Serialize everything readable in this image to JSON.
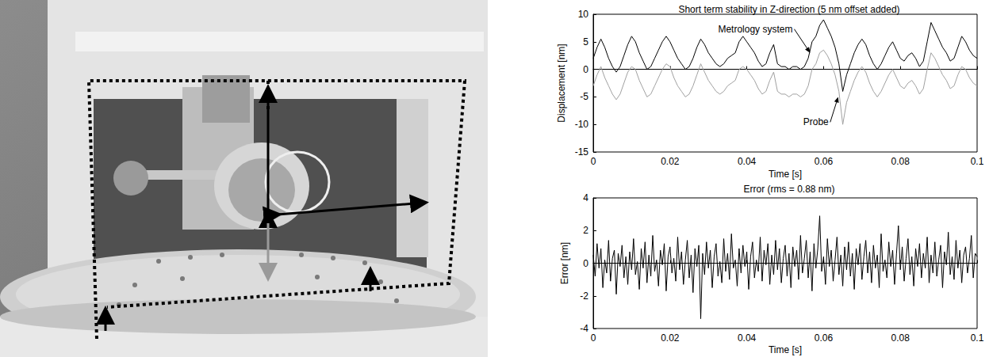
{
  "chart_data": [
    {
      "type": "line",
      "title": "Short term stability in Z-direction (5 nm offset added)",
      "xlabel": "Time [s]",
      "ylabel": "Displacement [nm]",
      "x": [
        0,
        0.001,
        0.002,
        0.003,
        0.004,
        0.005,
        0.006,
        0.007,
        0.008,
        0.009,
        0.01,
        0.011,
        0.012,
        0.013,
        0.014,
        0.015,
        0.016,
        0.017,
        0.018,
        0.019,
        0.02,
        0.021,
        0.022,
        0.023,
        0.024,
        0.025,
        0.026,
        0.027,
        0.028,
        0.029,
        0.03,
        0.031,
        0.032,
        0.033,
        0.034,
        0.035,
        0.036,
        0.037,
        0.038,
        0.039,
        0.04,
        0.041,
        0.042,
        0.043,
        0.044,
        0.045,
        0.046,
        0.047,
        0.048,
        0.049,
        0.05,
        0.051,
        0.052,
        0.053,
        0.054,
        0.055,
        0.056,
        0.057,
        0.058,
        0.059,
        0.06,
        0.061,
        0.062,
        0.063,
        0.064,
        0.065,
        0.066,
        0.067,
        0.068,
        0.069,
        0.07,
        0.071,
        0.072,
        0.073,
        0.074,
        0.075,
        0.076,
        0.077,
        0.078,
        0.079,
        0.08,
        0.081,
        0.082,
        0.083,
        0.084,
        0.085,
        0.086,
        0.087,
        0.088,
        0.089,
        0.09,
        0.091,
        0.092,
        0.093,
        0.094,
        0.095,
        0.096,
        0.097,
        0.098,
        0.099,
        0.1
      ],
      "series": [
        {
          "color": "#000000",
          "values": [
            2,
            4,
            5.5,
            4,
            2,
            0.5,
            -0.5,
            0.5,
            2.5,
            4.5,
            6,
            5,
            3,
            1.5,
            0,
            0.5,
            2,
            3.5,
            5,
            6,
            5,
            3.5,
            2,
            1,
            0,
            0.5,
            2,
            4,
            5.5,
            4.5,
            3,
            2,
            1,
            0.5,
            1,
            2,
            2.5,
            3,
            5,
            6,
            5,
            4,
            3,
            1.5,
            0.5,
            1,
            3,
            4.5,
            1,
            0.5,
            0.5,
            0,
            0.5,
            0.5,
            0,
            0.5,
            2,
            5,
            6,
            8,
            9,
            7.5,
            6,
            4,
            1,
            -4,
            -1,
            1,
            3,
            4.5,
            5.5,
            4.5,
            2.5,
            1,
            0,
            1,
            2.5,
            4,
            5,
            3.5,
            2,
            1.5,
            2.5,
            3,
            2,
            0.5,
            1.5,
            5,
            8.5,
            7,
            5.5,
            4,
            3,
            1.5,
            2,
            4,
            6,
            5,
            3.5,
            2.5,
            2
          ]
        },
        {
          "color": "#a0a0a0",
          "values": [
            -3,
            -1,
            0.5,
            -1.5,
            -3,
            -4.5,
            -5.5,
            -4.5,
            -2.5,
            -0.5,
            0.5,
            0,
            -2,
            -3.5,
            -5,
            -4.5,
            -3,
            -1.5,
            0,
            1,
            0.5,
            -1.5,
            -3,
            -4,
            -5,
            -4.5,
            -3,
            -1,
            1,
            -0.5,
            -2,
            -3,
            -4,
            -4.5,
            -4,
            -3,
            -2.5,
            -2,
            0,
            0.5,
            0,
            -1,
            -2,
            -3.5,
            -4.5,
            -4,
            -2,
            -0.5,
            -4,
            -4.5,
            -4.5,
            -5,
            -4.5,
            -4.5,
            -5,
            -4.5,
            -3,
            0,
            1,
            3,
            3.5,
            2.5,
            1,
            -1,
            -4,
            -10,
            -6,
            -4,
            -2,
            -0.5,
            0.5,
            -0.5,
            -2.5,
            -4,
            -5,
            -4,
            -2.5,
            -1,
            0,
            -1.5,
            -3,
            -3.5,
            -2.5,
            -2,
            -3,
            -4.5,
            -3.5,
            0,
            3,
            2,
            0.5,
            -1,
            -2,
            -3.5,
            -3,
            -1,
            0.5,
            0,
            -1.5,
            -2.5,
            -3
          ]
        }
      ],
      "annotations": [
        {
          "text": "Metrology system",
          "x": 0.0565,
          "y": 3
        },
        {
          "text": "Probe",
          "x": 0.0638,
          "y": -5
        }
      ],
      "xlim": [
        0,
        0.1
      ],
      "xticks": [
        0,
        0.02,
        0.04,
        0.06,
        0.08,
        0.1
      ],
      "ylim": [
        -15,
        10
      ],
      "yticks": [
        -15,
        -10,
        -5,
        0,
        5,
        10
      ],
      "grid": false
    },
    {
      "type": "line",
      "title": "Error (rms = 0.88 nm)",
      "xlabel": "Time [s]",
      "ylabel": "Error [nm]",
      "x": [
        0,
        0.0005,
        0.001,
        0.0015,
        0.002,
        0.0025,
        0.003,
        0.0035,
        0.004,
        0.0045,
        0.005,
        0.0055,
        0.006,
        0.0065,
        0.007,
        0.0075,
        0.008,
        0.0085,
        0.009,
        0.0095,
        0.01,
        0.0105,
        0.011,
        0.0115,
        0.012,
        0.0125,
        0.013,
        0.0135,
        0.014,
        0.0145,
        0.015,
        0.0155,
        0.016,
        0.0165,
        0.017,
        0.0175,
        0.018,
        0.0185,
        0.019,
        0.0195,
        0.02,
        0.0205,
        0.021,
        0.0215,
        0.022,
        0.0225,
        0.023,
        0.0235,
        0.024,
        0.0245,
        0.025,
        0.0255,
        0.026,
        0.0265,
        0.027,
        0.0275,
        0.028,
        0.0285,
        0.029,
        0.0295,
        0.03,
        0.0305,
        0.031,
        0.0315,
        0.032,
        0.0325,
        0.033,
        0.0335,
        0.034,
        0.0345,
        0.035,
        0.0355,
        0.036,
        0.0365,
        0.037,
        0.0375,
        0.038,
        0.0385,
        0.039,
        0.0395,
        0.04,
        0.0405,
        0.041,
        0.0415,
        0.042,
        0.0425,
        0.043,
        0.0435,
        0.044,
        0.0445,
        0.045,
        0.0455,
        0.046,
        0.0465,
        0.047,
        0.0475,
        0.048,
        0.0485,
        0.049,
        0.0495,
        0.05,
        0.0505,
        0.051,
        0.0515,
        0.052,
        0.0525,
        0.053,
        0.0535,
        0.054,
        0.0545,
        0.055,
        0.0555,
        0.056,
        0.0565,
        0.057,
        0.0575,
        0.058,
        0.0585,
        0.059,
        0.0595,
        0.06,
        0.0605,
        0.061,
        0.0615,
        0.062,
        0.0625,
        0.063,
        0.0635,
        0.064,
        0.0645,
        0.065,
        0.0655,
        0.066,
        0.0665,
        0.067,
        0.0675,
        0.068,
        0.0685,
        0.069,
        0.0695,
        0.07,
        0.0705,
        0.071,
        0.0715,
        0.072,
        0.0725,
        0.073,
        0.0735,
        0.074,
        0.0745,
        0.075,
        0.0755,
        0.076,
        0.0765,
        0.077,
        0.0775,
        0.078,
        0.0785,
        0.079,
        0.0795,
        0.08,
        0.0805,
        0.081,
        0.0815,
        0.082,
        0.0825,
        0.083,
        0.0835,
        0.084,
        0.0845,
        0.085,
        0.0855,
        0.086,
        0.0865,
        0.087,
        0.0875,
        0.088,
        0.0885,
        0.089,
        0.0895,
        0.09,
        0.0905,
        0.091,
        0.0915,
        0.092,
        0.0925,
        0.093,
        0.0935,
        0.094,
        0.0945,
        0.095,
        0.0955,
        0.096,
        0.0965,
        0.097,
        0.0975,
        0.098,
        0.0985,
        0.099,
        0.0995,
        0.1
      ],
      "series": [
        {
          "color": "#000000",
          "values": [
            0.5,
            -0.8,
            1.2,
            -0.3,
            0.9,
            -1.5,
            0.2,
            -0.6,
            1.4,
            -1.1,
            0.3,
            0.8,
            -1.9,
            0.6,
            -0.2,
            1.1,
            -0.9,
            0.4,
            -1.3,
            0.7,
            -0.4,
            1.5,
            -0.7,
            0.1,
            -1.6,
            0.9,
            -0.3,
            1.3,
            -1.2,
            0.5,
            -0.8,
            1.7,
            -0.5,
            0.2,
            -1.4,
            0.8,
            -0.1,
            1.2,
            -1.7,
            0.4,
            1.0,
            -0.6,
            0.3,
            -1.1,
            1.6,
            -0.4,
            0.7,
            -1.3,
            0.2,
            1.4,
            -0.9,
            0.5,
            -1.8,
            0.9,
            -0.2,
            1.1,
            -3.4,
            0.6,
            -0.7,
            1.3,
            -0.3,
            0.8,
            -1.5,
            0.4,
            1.2,
            -0.8,
            0.1,
            -1.2,
            1.5,
            -0.5,
            0.6,
            -1.0,
            1.8,
            -0.3,
            0.2,
            -1.4,
            0.9,
            -0.6,
            1.1,
            -0.2,
            0.7,
            -1.6,
            0.4,
            1.3,
            -0.9,
            0.2,
            -0.5,
            1.6,
            -1.1,
            0.8,
            -0.1,
            1.2,
            -1.3,
            0.5,
            -0.7,
            1.4,
            -0.4,
            0.9,
            -1.2,
            0.3,
            1.1,
            -0.8,
            0.6,
            -1.5,
            1.0,
            -0.2,
            0.8,
            -1.0,
            1.7,
            -0.6,
            0.3,
            1.4,
            -0.9,
            0.7,
            -1.7,
            1.2,
            -0.3,
            0.9,
            2.9,
            -0.5,
            0.4,
            -1.3,
            1.5,
            -0.2,
            0.8,
            -1.1,
            0.2,
            1.6,
            -0.7,
            0.5,
            -1.4,
            1.0,
            -0.4,
            1.3,
            -0.8,
            0.6,
            -1.6,
            0.9,
            -0.1,
            1.2,
            -1.0,
            0.4,
            1.4,
            -0.6,
            0.7,
            -1.2,
            1.1,
            -0.3,
            0.5,
            -1.5,
            1.8,
            -0.5,
            0.2,
            -0.9,
            1.3,
            -0.2,
            0.8,
            -1.3,
            0.6,
            2.3,
            -0.4,
            1.0,
            -1.1,
            0.3,
            1.5,
            -0.7,
            0.4,
            -1.4,
            0.9,
            -0.2,
            1.2,
            -0.9,
            0.6,
            -0.3,
            1.6,
            -1.2,
            0.5,
            -0.6,
            1.3,
            -0.8,
            0.2,
            1.1,
            -1.5,
            0.7,
            -0.1,
            1.9,
            -0.7,
            0.4,
            -1.0,
            1.4,
            -0.3,
            0.8,
            -1.2,
            0.5,
            1.0,
            -0.6,
            0.3,
            1.7,
            -0.9,
            0.6,
            0.4
          ]
        }
      ],
      "xlim": [
        0,
        0.1
      ],
      "xticks": [
        0,
        0.02,
        0.04,
        0.06,
        0.08,
        0.1
      ],
      "ylim": [
        -4,
        4
      ],
      "yticks": [
        -4,
        -2,
        0,
        2,
        4
      ],
      "grid": false
    }
  ]
}
